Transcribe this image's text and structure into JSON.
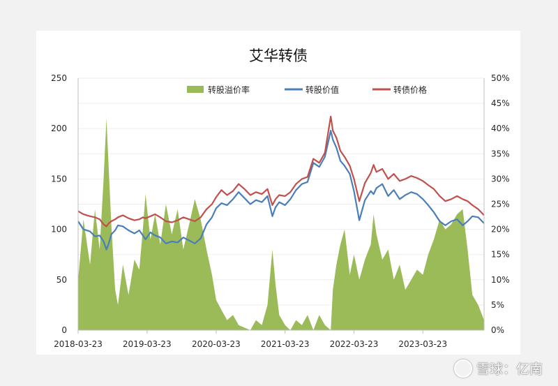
{
  "chart_data": {
    "type": "line",
    "title": "艾华转债",
    "x_tick_labels": [
      "2018-03-23",
      "2019-03-23",
      "2020-03-23",
      "2021-03-23",
      "2022-03-23",
      "2023-03-23"
    ],
    "x_range": [
      "2018-03-23",
      "2024-02-10"
    ],
    "y_left": {
      "range": [
        0,
        250
      ],
      "ticks": [
        "0",
        "50",
        "100",
        "150",
        "200",
        "250"
      ]
    },
    "y_right": {
      "range": [
        0,
        50
      ],
      "unit": "%",
      "ticks": [
        "0%",
        "5%",
        "10%",
        "15%",
        "20%",
        "25%",
        "30%",
        "35%",
        "40%",
        "45%",
        "50%"
      ]
    },
    "legend_position": "top",
    "grid": "horizontal",
    "series": [
      {
        "name": "转股溢价率",
        "type": "area",
        "axis": "right",
        "color": "#9bbb59",
        "points": [
          [
            "2018-03-23",
            10
          ],
          [
            "2018-04-20",
            22
          ],
          [
            "2018-05-25",
            13
          ],
          [
            "2018-06-20",
            24
          ],
          [
            "2018-07-15",
            16
          ],
          [
            "2018-08-05",
            30
          ],
          [
            "2018-08-20",
            42
          ],
          [
            "2018-09-01",
            32
          ],
          [
            "2018-09-15",
            21
          ],
          [
            "2018-10-05",
            8
          ],
          [
            "2018-10-20",
            5
          ],
          [
            "2018-11-15",
            13
          ],
          [
            "2018-12-15",
            7
          ],
          [
            "2019-01-15",
            14
          ],
          [
            "2019-02-10",
            12
          ],
          [
            "2019-03-01",
            20
          ],
          [
            "2019-03-15",
            27
          ],
          [
            "2019-04-10",
            18
          ],
          [
            "2019-05-05",
            23
          ],
          [
            "2019-06-01",
            17
          ],
          [
            "2019-07-01",
            25
          ],
          [
            "2019-08-01",
            19
          ],
          [
            "2019-09-01",
            24
          ],
          [
            "2019-10-01",
            16
          ],
          [
            "2019-11-01",
            21
          ],
          [
            "2019-12-01",
            26
          ],
          [
            "2020-01-01",
            22
          ],
          [
            "2020-02-01",
            16
          ],
          [
            "2020-03-01",
            11
          ],
          [
            "2020-03-23",
            6
          ],
          [
            "2020-04-20",
            4
          ],
          [
            "2020-05-20",
            2
          ],
          [
            "2020-06-20",
            3
          ],
          [
            "2020-07-20",
            1
          ],
          [
            "2020-08-20",
            0.5
          ],
          [
            "2020-09-20",
            0
          ],
          [
            "2020-10-20",
            2
          ],
          [
            "2020-11-20",
            1
          ],
          [
            "2020-12-20",
            5
          ],
          [
            "2021-01-15",
            16
          ],
          [
            "2021-02-01",
            9
          ],
          [
            "2021-02-20",
            3
          ],
          [
            "2021-03-23",
            1
          ],
          [
            "2021-04-20",
            0
          ],
          [
            "2021-05-20",
            2
          ],
          [
            "2021-06-20",
            1
          ],
          [
            "2021-07-20",
            3
          ],
          [
            "2021-08-20",
            0
          ],
          [
            "2021-09-20",
            3
          ],
          [
            "2021-10-20",
            1
          ],
          [
            "2021-11-20",
            0
          ],
          [
            "2021-12-01",
            8
          ],
          [
            "2021-12-20",
            13
          ],
          [
            "2022-01-10",
            17
          ],
          [
            "2022-02-01",
            20
          ],
          [
            "2022-03-01",
            11
          ],
          [
            "2022-03-23",
            15
          ],
          [
            "2022-04-20",
            10
          ],
          [
            "2022-05-20",
            14
          ],
          [
            "2022-06-20",
            17
          ],
          [
            "2022-07-05",
            23
          ],
          [
            "2022-07-20",
            19
          ],
          [
            "2022-08-20",
            14
          ],
          [
            "2022-09-20",
            16
          ],
          [
            "2022-10-20",
            10
          ],
          [
            "2022-11-20",
            13
          ],
          [
            "2022-12-20",
            8
          ],
          [
            "2023-01-20",
            10
          ],
          [
            "2023-02-20",
            12
          ],
          [
            "2023-03-23",
            11
          ],
          [
            "2023-04-20",
            15
          ],
          [
            "2023-05-20",
            18
          ],
          [
            "2023-06-20",
            22
          ],
          [
            "2023-07-20",
            20
          ],
          [
            "2023-08-20",
            21
          ],
          [
            "2023-09-20",
            23
          ],
          [
            "2023-10-20",
            24
          ],
          [
            "2023-11-15",
            16
          ],
          [
            "2023-12-10",
            7
          ],
          [
            "2024-01-10",
            5
          ],
          [
            "2024-02-10",
            2
          ]
        ]
      },
      {
        "name": "转股价值",
        "type": "line",
        "axis": "left",
        "color": "#4a7ebb",
        "points": [
          [
            "2018-03-23",
            108
          ],
          [
            "2018-04-20",
            100
          ],
          [
            "2018-05-25",
            98
          ],
          [
            "2018-06-20",
            93
          ],
          [
            "2018-07-15",
            94
          ],
          [
            "2018-08-05",
            88
          ],
          [
            "2018-08-20",
            80
          ],
          [
            "2018-09-01",
            86
          ],
          [
            "2018-09-15",
            95
          ],
          [
            "2018-10-05",
            99
          ],
          [
            "2018-10-20",
            104
          ],
          [
            "2018-11-15",
            103
          ],
          [
            "2018-12-15",
            99
          ],
          [
            "2019-01-15",
            96
          ],
          [
            "2019-02-10",
            99
          ],
          [
            "2019-03-01",
            94
          ],
          [
            "2019-03-15",
            90
          ],
          [
            "2019-04-10",
            97
          ],
          [
            "2019-05-05",
            94
          ],
          [
            "2019-06-01",
            92
          ],
          [
            "2019-07-01",
            86
          ],
          [
            "2019-08-01",
            88
          ],
          [
            "2019-09-01",
            87
          ],
          [
            "2019-10-01",
            92
          ],
          [
            "2019-11-01",
            89
          ],
          [
            "2019-12-01",
            86
          ],
          [
            "2020-01-01",
            91
          ],
          [
            "2020-02-01",
            105
          ],
          [
            "2020-03-01",
            112
          ],
          [
            "2020-03-23",
            121
          ],
          [
            "2020-04-20",
            126
          ],
          [
            "2020-05-20",
            124
          ],
          [
            "2020-06-20",
            130
          ],
          [
            "2020-07-20",
            137
          ],
          [
            "2020-08-20",
            131
          ],
          [
            "2020-09-20",
            125
          ],
          [
            "2020-10-20",
            129
          ],
          [
            "2020-11-20",
            127
          ],
          [
            "2020-12-20",
            133
          ],
          [
            "2021-01-15",
            113
          ],
          [
            "2021-02-01",
            122
          ],
          [
            "2021-02-20",
            127
          ],
          [
            "2021-03-23",
            124
          ],
          [
            "2021-04-20",
            130
          ],
          [
            "2021-05-20",
            139
          ],
          [
            "2021-06-20",
            145
          ],
          [
            "2021-07-20",
            147
          ],
          [
            "2021-08-20",
            166
          ],
          [
            "2021-09-20",
            162
          ],
          [
            "2021-10-20",
            172
          ],
          [
            "2021-11-20",
            198
          ],
          [
            "2021-12-01",
            189
          ],
          [
            "2021-12-20",
            181
          ],
          [
            "2022-01-10",
            168
          ],
          [
            "2022-02-01",
            163
          ],
          [
            "2022-03-01",
            155
          ],
          [
            "2022-03-23",
            138
          ],
          [
            "2022-04-20",
            109
          ],
          [
            "2022-05-20",
            129
          ],
          [
            "2022-06-20",
            138
          ],
          [
            "2022-07-05",
            135
          ],
          [
            "2022-07-20",
            141
          ],
          [
            "2022-08-20",
            145
          ],
          [
            "2022-09-20",
            133
          ],
          [
            "2022-10-20",
            139
          ],
          [
            "2022-11-20",
            130
          ],
          [
            "2022-12-20",
            134
          ],
          [
            "2023-01-20",
            137
          ],
          [
            "2023-02-20",
            135
          ],
          [
            "2023-03-23",
            130
          ],
          [
            "2023-04-20",
            124
          ],
          [
            "2023-05-20",
            117
          ],
          [
            "2023-06-20",
            108
          ],
          [
            "2023-07-20",
            104
          ],
          [
            "2023-08-20",
            108
          ],
          [
            "2023-09-20",
            110
          ],
          [
            "2023-10-20",
            104
          ],
          [
            "2023-11-15",
            108
          ],
          [
            "2023-12-10",
            113
          ],
          [
            "2024-01-10",
            112
          ],
          [
            "2024-02-10",
            106
          ]
        ]
      },
      {
        "name": "转债价格",
        "type": "line",
        "axis": "left",
        "color": "#c0504d",
        "points": [
          [
            "2018-03-23",
            118
          ],
          [
            "2018-04-20",
            115
          ],
          [
            "2018-05-25",
            113
          ],
          [
            "2018-06-20",
            112
          ],
          [
            "2018-07-15",
            110
          ],
          [
            "2018-08-05",
            105
          ],
          [
            "2018-08-20",
            103
          ],
          [
            "2018-09-01",
            106
          ],
          [
            "2018-09-15",
            108
          ],
          [
            "2018-10-05",
            110
          ],
          [
            "2018-10-20",
            112
          ],
          [
            "2018-11-15",
            114
          ],
          [
            "2018-12-15",
            111
          ],
          [
            "2019-01-15",
            109
          ],
          [
            "2019-02-10",
            110
          ],
          [
            "2019-03-01",
            112
          ],
          [
            "2019-03-15",
            111
          ],
          [
            "2019-04-10",
            113
          ],
          [
            "2019-05-05",
            115
          ],
          [
            "2019-06-01",
            112
          ],
          [
            "2019-07-01",
            108
          ],
          [
            "2019-08-01",
            107
          ],
          [
            "2019-09-01",
            109
          ],
          [
            "2019-10-01",
            112
          ],
          [
            "2019-11-01",
            110
          ],
          [
            "2019-12-01",
            108
          ],
          [
            "2020-01-01",
            112
          ],
          [
            "2020-02-01",
            120
          ],
          [
            "2020-03-01",
            125
          ],
          [
            "2020-03-23",
            132
          ],
          [
            "2020-04-20",
            139
          ],
          [
            "2020-05-20",
            134
          ],
          [
            "2020-06-20",
            138
          ],
          [
            "2020-07-20",
            145
          ],
          [
            "2020-08-20",
            140
          ],
          [
            "2020-09-20",
            134
          ],
          [
            "2020-10-20",
            137
          ],
          [
            "2020-11-20",
            135
          ],
          [
            "2020-12-20",
            140
          ],
          [
            "2021-01-15",
            124
          ],
          [
            "2021-02-01",
            130
          ],
          [
            "2021-02-20",
            134
          ],
          [
            "2021-03-23",
            133
          ],
          [
            "2021-04-20",
            137
          ],
          [
            "2021-05-20",
            145
          ],
          [
            "2021-06-20",
            150
          ],
          [
            "2021-07-20",
            152
          ],
          [
            "2021-08-20",
            170
          ],
          [
            "2021-09-20",
            166
          ],
          [
            "2021-10-20",
            176
          ],
          [
            "2021-11-20",
            212
          ],
          [
            "2021-12-01",
            198
          ],
          [
            "2021-12-20",
            191
          ],
          [
            "2022-01-10",
            178
          ],
          [
            "2022-02-01",
            172
          ],
          [
            "2022-03-01",
            163
          ],
          [
            "2022-03-23",
            150
          ],
          [
            "2022-04-20",
            128
          ],
          [
            "2022-05-20",
            146
          ],
          [
            "2022-06-20",
            156
          ],
          [
            "2022-07-05",
            164
          ],
          [
            "2022-07-20",
            157
          ],
          [
            "2022-08-20",
            160
          ],
          [
            "2022-09-20",
            150
          ],
          [
            "2022-10-20",
            155
          ],
          [
            "2022-11-20",
            148
          ],
          [
            "2022-12-20",
            150
          ],
          [
            "2023-01-20",
            153
          ],
          [
            "2023-02-20",
            151
          ],
          [
            "2023-03-23",
            148
          ],
          [
            "2023-04-20",
            144
          ],
          [
            "2023-05-20",
            140
          ],
          [
            "2023-06-20",
            133
          ],
          [
            "2023-07-20",
            128
          ],
          [
            "2023-08-20",
            130
          ],
          [
            "2023-09-20",
            133
          ],
          [
            "2023-10-20",
            130
          ],
          [
            "2023-11-15",
            128
          ],
          [
            "2023-12-10",
            124
          ],
          [
            "2024-01-10",
            120
          ],
          [
            "2024-02-10",
            114
          ]
        ]
      }
    ]
  },
  "watermark": "雪球：亿南"
}
